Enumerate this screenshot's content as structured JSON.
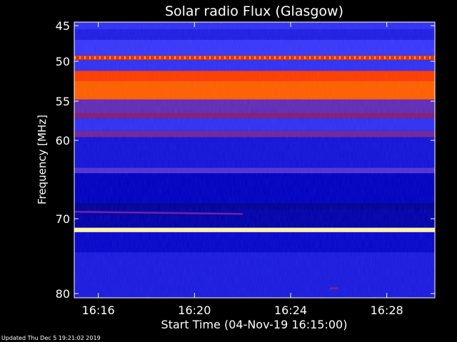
{
  "chart_data": {
    "type": "heatmap",
    "title": "Solar radio Flux (Glasgow)",
    "xlabel": "Start Time (04-Nov-19 16:15:00)",
    "ylabel": "Frequency [MHz]",
    "x_ticks": [
      "16:16",
      "16:20",
      "16:24",
      "16:28"
    ],
    "x_tick_minutes": [
      1,
      5,
      9,
      13
    ],
    "x_range_minutes": [
      0,
      15
    ],
    "y_ticks": [
      45,
      50,
      55,
      60,
      70,
      80
    ],
    "y_range_mhz": [
      44.5,
      80.5
    ],
    "y_scale": "nonlinear",
    "colormap": [
      "#00004a",
      "#0000c8",
      "#3c3cff",
      "#c00000",
      "#ff4000",
      "#ffa000",
      "#ffffc0"
    ],
    "bands": [
      {
        "f_from": 44.5,
        "f_to": 45.5,
        "level": 0.3
      },
      {
        "f_from": 45.5,
        "f_to": 47.0,
        "level": 0.25
      },
      {
        "f_from": 47.0,
        "f_to": 49.2,
        "level": 0.32
      },
      {
        "f_from": 49.2,
        "f_to": 49.8,
        "level": 0.62
      },
      {
        "f_from": 49.8,
        "f_to": 51.2,
        "level": 0.3
      },
      {
        "f_from": 51.2,
        "f_to": 52.5,
        "level": 0.66
      },
      {
        "f_from": 52.5,
        "f_to": 54.8,
        "level": 0.72
      },
      {
        "f_from": 54.8,
        "f_to": 56.5,
        "level": 0.38
      },
      {
        "f_from": 56.5,
        "f_to": 57.2,
        "level": 0.42
      },
      {
        "f_from": 57.2,
        "f_to": 58.8,
        "level": 0.3
      },
      {
        "f_from": 58.8,
        "f_to": 59.6,
        "level": 0.4
      },
      {
        "f_from": 59.6,
        "f_to": 63.5,
        "level": 0.22
      },
      {
        "f_from": 63.5,
        "f_to": 64.2,
        "level": 0.36
      },
      {
        "f_from": 64.2,
        "f_to": 68.0,
        "level": 0.16
      },
      {
        "f_from": 68.0,
        "f_to": 68.8,
        "level": 0.1
      },
      {
        "f_from": 68.8,
        "f_to": 71.2,
        "level": 0.13
      },
      {
        "f_from": 71.2,
        "f_to": 71.8,
        "level": 0.98
      },
      {
        "f_from": 71.8,
        "f_to": 74.5,
        "level": 0.18
      },
      {
        "f_from": 74.5,
        "f_to": 80.5,
        "level": 0.24
      }
    ],
    "features": [
      {
        "kind": "burst_line",
        "t_from": 0.0,
        "t_to": 7.0,
        "f": 69.2,
        "level": 0.4
      },
      {
        "kind": "dotted_line",
        "t_from": 0.0,
        "t_to": 15.0,
        "f": 49.5,
        "level": 0.85
      },
      {
        "kind": "spot",
        "t": 10.8,
        "f": 79.3,
        "level": 0.4
      }
    ]
  },
  "footer": "Updated Thu Dec  5 19:21:02 2019"
}
